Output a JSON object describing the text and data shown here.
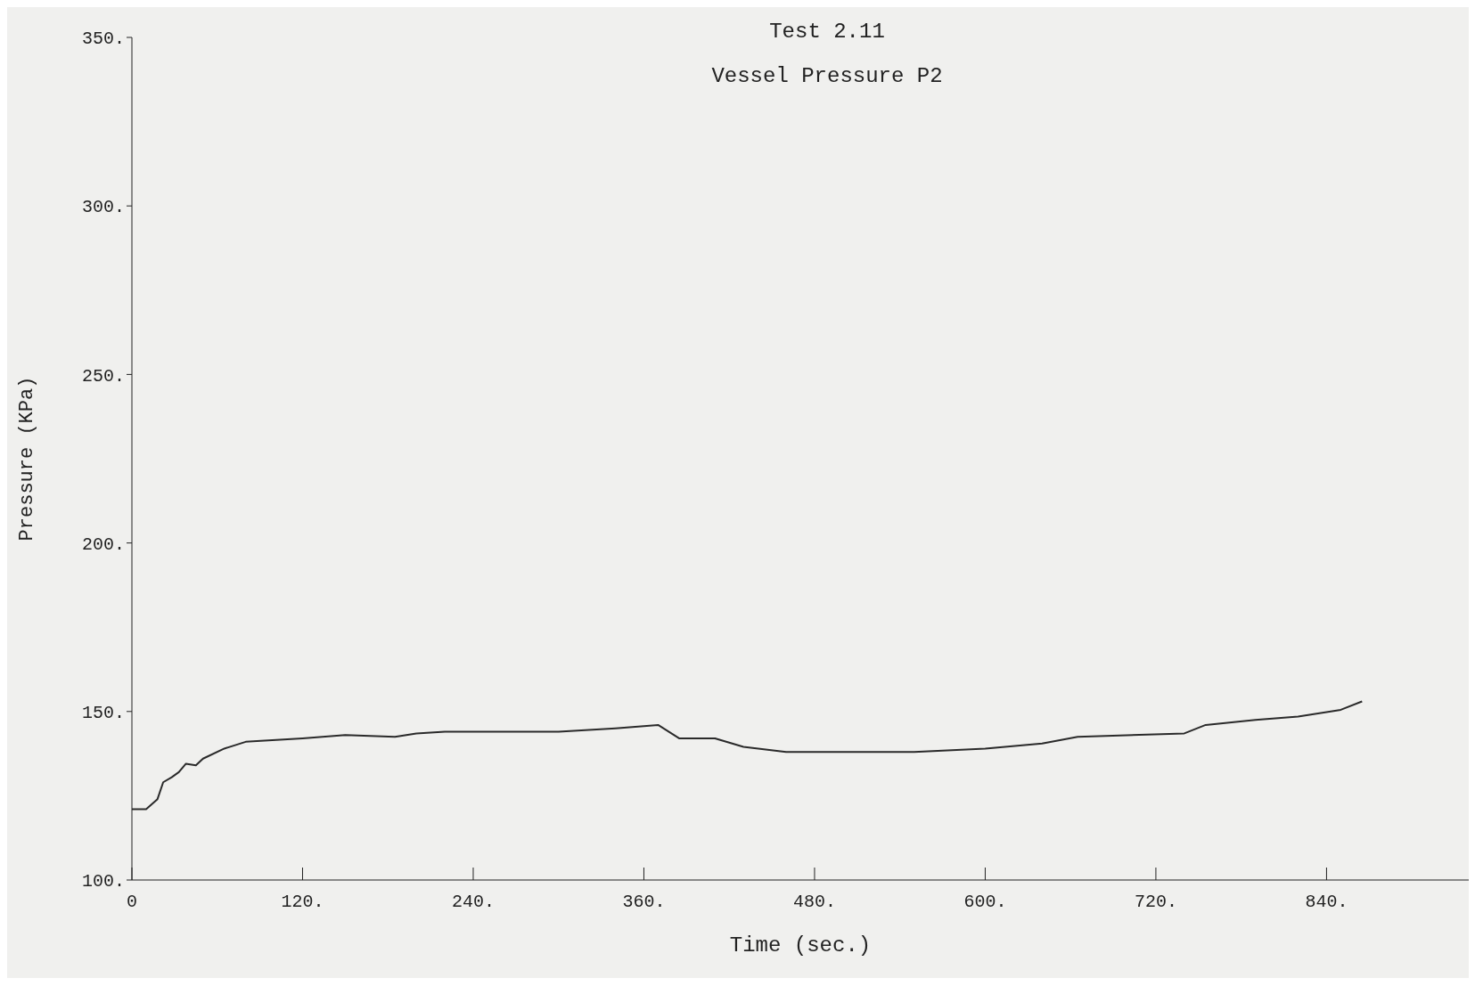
{
  "chart_data": {
    "type": "line",
    "title": "Test 2.11",
    "subtitle": "Vessel Pressure P2",
    "xlabel": "Time (sec.)",
    "ylabel": "Pressure (KPa)",
    "x": [
      0,
      10,
      18,
      22,
      28,
      33,
      38,
      45,
      50,
      65,
      80,
      120,
      150,
      185,
      200,
      220,
      300,
      340,
      370,
      385,
      410,
      430,
      460,
      500,
      550,
      600,
      640,
      665,
      740,
      755,
      790,
      820,
      850,
      865
    ],
    "series": [
      {
        "color": "#2a2a2a",
        "values": [
          121,
          121,
          124,
          129,
          130.5,
          132,
          134.5,
          134,
          136,
          139,
          141,
          142,
          143,
          142.5,
          143.5,
          144,
          144,
          145,
          146,
          142,
          142,
          139.5,
          138,
          138,
          138,
          139,
          140.5,
          142.5,
          143.5,
          146,
          147.5,
          148.5,
          150.5,
          153
        ]
      }
    ],
    "xlim": [
      0,
      940
    ],
    "ylim": [
      100,
      350
    ],
    "xticks": [
      {
        "value": 0,
        "label": "0"
      },
      {
        "value": 120,
        "label": "120."
      },
      {
        "value": 240,
        "label": "240."
      },
      {
        "value": 360,
        "label": "360."
      },
      {
        "value": 480,
        "label": "480."
      },
      {
        "value": 600,
        "label": "600."
      },
      {
        "value": 720,
        "label": "720."
      },
      {
        "value": 840,
        "label": "840."
      }
    ],
    "yticks": [
      {
        "value": 100,
        "label": "100."
      },
      {
        "value": 150,
        "label": "150."
      },
      {
        "value": 200,
        "label": "200."
      },
      {
        "value": 250,
        "label": "250."
      },
      {
        "value": 300,
        "label": "300."
      },
      {
        "value": 350,
        "label": "350."
      }
    ],
    "grid": false,
    "legend": false,
    "marker": "none",
    "line_style": "solid"
  }
}
